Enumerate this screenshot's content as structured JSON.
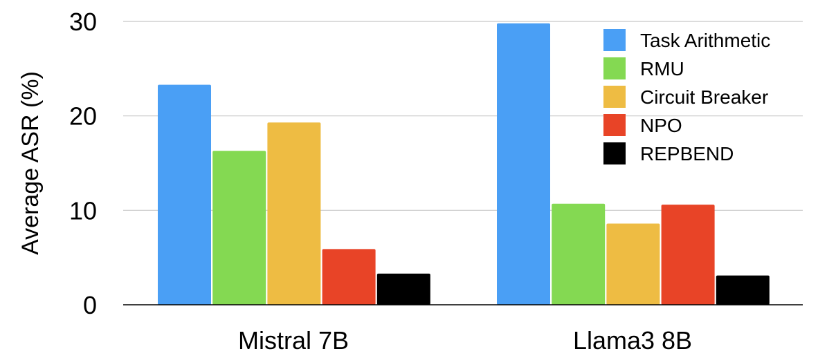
{
  "chart_data": {
    "type": "bar",
    "categories": [
      "Mistral 7B",
      "Llama3 8B"
    ],
    "series": [
      {
        "name": "Task Arithmetic",
        "color": "#4A9FF5",
        "values": [
          23.3,
          29.8
        ]
      },
      {
        "name": "RMU",
        "color": "#84D952",
        "values": [
          16.3,
          10.7
        ]
      },
      {
        "name": "Circuit Breaker",
        "color": "#EEBC43",
        "values": [
          19.3,
          8.6
        ]
      },
      {
        "name": "NPO",
        "color": "#E84427",
        "values": [
          5.9,
          10.6
        ]
      },
      {
        "name": "REPBEND",
        "color": "#000000",
        "values": [
          3.3,
          3.1
        ]
      }
    ],
    "xlabel": "",
    "ylabel": "Average ASR (%)",
    "ylim": [
      0,
      30
    ],
    "yticks": [
      0,
      10,
      20,
      30
    ],
    "grid": true,
    "legend_position": "top-right"
  }
}
